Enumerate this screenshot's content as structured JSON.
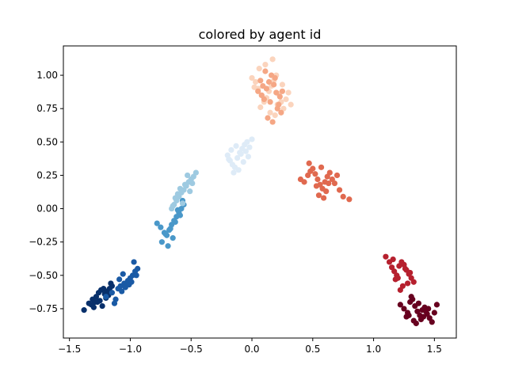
{
  "chart_data": {
    "type": "scatter",
    "title": "colored by agent id",
    "xlabel": "",
    "ylabel": "",
    "xlim": [
      -1.55,
      1.68
    ],
    "ylim": [
      -0.97,
      1.22
    ],
    "xticks": [
      -1.5,
      -1.0,
      -0.5,
      0.0,
      0.5,
      1.0,
      1.5
    ],
    "xtick_labels": [
      "−1.5",
      "−1.0",
      "−0.5",
      "0.0",
      "0.5",
      "1.0",
      "1.5"
    ],
    "yticks": [
      -0.75,
      -0.5,
      -0.25,
      0.0,
      0.25,
      0.5,
      0.75,
      1.0
    ],
    "ytick_labels": [
      "−0.75",
      "−0.50",
      "−0.25",
      "0.00",
      "0.25",
      "0.50",
      "0.75",
      "1.00"
    ],
    "grid": false,
    "legend": "none",
    "colormap": "RdBu_r",
    "series": [
      {
        "color": "#08306b",
        "x": [
          -1.38,
          -1.34,
          -1.31,
          -1.28,
          -1.26,
          -1.24,
          -1.22,
          -1.21,
          -1.19,
          -1.17,
          -1.15,
          -1.3,
          -1.27,
          -1.25,
          -1.2,
          -1.18,
          -1.32,
          -1.23,
          -1.16,
          -1.29
        ],
        "y": [
          -0.76,
          -0.71,
          -0.68,
          -0.66,
          -0.63,
          -0.61,
          -0.6,
          -0.64,
          -0.62,
          -0.6,
          -0.58,
          -0.74,
          -0.7,
          -0.69,
          -0.67,
          -0.65,
          -0.72,
          -0.73,
          -0.56,
          -0.7
        ]
      },
      {
        "color": "#1a5aa5",
        "x": [
          -1.2,
          -1.15,
          -1.1,
          -1.08,
          -1.05,
          -1.02,
          -1.0,
          -0.98,
          -0.96,
          -0.94,
          -1.12,
          -1.07,
          -1.04,
          -1.01,
          -0.99,
          -1.13,
          -1.06,
          -1.09,
          -0.95,
          -0.97
        ],
        "y": [
          -0.66,
          -0.63,
          -0.6,
          -0.58,
          -0.56,
          -0.54,
          -0.52,
          -0.5,
          -0.47,
          -0.45,
          -0.68,
          -0.62,
          -0.59,
          -0.57,
          -0.55,
          -0.71,
          -0.49,
          -0.53,
          -0.5,
          -0.4
        ]
      },
      {
        "color": "#4a98c9",
        "x": [
          -0.78,
          -0.75,
          -0.72,
          -0.7,
          -0.68,
          -0.66,
          -0.64,
          -0.62,
          -0.6,
          -0.58,
          -0.56,
          -0.74,
          -0.69,
          -0.65,
          -0.63,
          -0.61,
          -0.57,
          -0.71,
          -0.67,
          -0.59
        ],
        "y": [
          -0.11,
          -0.14,
          -0.18,
          -0.2,
          -0.16,
          -0.12,
          -0.09,
          -0.06,
          -0.03,
          0.0,
          0.03,
          -0.25,
          -0.28,
          -0.22,
          -0.1,
          -0.01,
          0.06,
          -0.19,
          -0.15,
          -0.05
        ]
      },
      {
        "color": "#9ecae1",
        "x": [
          -0.66,
          -0.64,
          -0.62,
          -0.6,
          -0.58,
          -0.56,
          -0.54,
          -0.52,
          -0.5,
          -0.48,
          -0.46,
          -0.63,
          -0.59,
          -0.55,
          -0.53,
          -0.61,
          -0.57,
          -0.51,
          -0.49,
          -0.65
        ],
        "y": [
          0.0,
          0.03,
          0.06,
          0.09,
          0.12,
          0.14,
          0.17,
          0.2,
          0.22,
          0.24,
          0.27,
          0.08,
          0.15,
          0.18,
          0.25,
          0.11,
          0.04,
          0.13,
          0.19,
          0.02
        ]
      },
      {
        "color": "#deebf7",
        "x": [
          -0.2,
          -0.18,
          -0.16,
          -0.14,
          -0.12,
          -0.1,
          -0.08,
          -0.06,
          -0.04,
          -0.02,
          0.0,
          -0.15,
          -0.11,
          -0.07,
          -0.13,
          -0.09,
          -0.05,
          -0.17,
          -0.03,
          -0.19
        ],
        "y": [
          0.4,
          0.36,
          0.33,
          0.31,
          0.38,
          0.42,
          0.45,
          0.48,
          0.5,
          0.46,
          0.52,
          0.27,
          0.29,
          0.35,
          0.47,
          0.41,
          0.43,
          0.44,
          0.39,
          0.37
        ]
      },
      {
        "color": "#fbd4bd",
        "x": [
          0.0,
          0.03,
          0.05,
          0.08,
          0.1,
          0.12,
          0.14,
          0.16,
          0.18,
          0.2,
          0.22,
          0.24,
          0.26,
          0.28,
          0.3,
          0.06,
          0.11,
          0.17,
          0.21,
          0.25,
          0.07,
          0.15,
          0.19,
          0.32,
          0.02
        ],
        "y": [
          0.98,
          0.95,
          0.9,
          0.85,
          0.8,
          0.83,
          0.88,
          0.92,
          0.96,
          1.0,
          0.86,
          0.8,
          0.75,
          0.82,
          0.87,
          1.05,
          1.08,
          1.12,
          0.78,
          0.93,
          0.76,
          0.72,
          0.7,
          0.78,
          0.91
        ]
      },
      {
        "color": "#f5a785",
        "x": [
          0.05,
          0.08,
          0.1,
          0.12,
          0.14,
          0.16,
          0.18,
          0.2,
          0.22,
          0.24,
          0.13,
          0.17,
          0.21,
          0.11,
          0.19,
          0.23,
          0.15,
          0.09,
          0.25,
          0.07
        ],
        "y": [
          0.88,
          0.85,
          0.82,
          0.9,
          0.95,
          1.0,
          0.93,
          0.87,
          0.78,
          0.72,
          0.68,
          0.65,
          0.75,
          1.03,
          0.98,
          0.84,
          0.8,
          0.92,
          0.88,
          0.96
        ]
      },
      {
        "color": "#e0694f",
        "x": [
          0.4,
          0.43,
          0.46,
          0.48,
          0.5,
          0.52,
          0.54,
          0.56,
          0.58,
          0.6,
          0.62,
          0.64,
          0.66,
          0.68,
          0.7,
          0.72,
          0.55,
          0.59,
          0.61,
          0.53,
          0.47,
          0.75,
          0.8,
          0.63,
          0.57
        ],
        "y": [
          0.22,
          0.2,
          0.25,
          0.28,
          0.3,
          0.26,
          0.22,
          0.18,
          0.15,
          0.2,
          0.24,
          0.27,
          0.22,
          0.19,
          0.25,
          0.14,
          0.1,
          0.08,
          0.13,
          0.17,
          0.34,
          0.09,
          0.07,
          0.19,
          0.31
        ]
      },
      {
        "color": "#b6202e",
        "x": [
          1.1,
          1.13,
          1.15,
          1.17,
          1.19,
          1.21,
          1.23,
          1.25,
          1.27,
          1.29,
          1.31,
          1.33,
          1.2,
          1.24,
          1.28,
          1.16,
          1.22,
          1.26,
          1.3,
          1.18
        ],
        "y": [
          -0.36,
          -0.4,
          -0.44,
          -0.47,
          -0.5,
          -0.43,
          -0.4,
          -0.42,
          -0.46,
          -0.49,
          -0.52,
          -0.55,
          -0.52,
          -0.58,
          -0.56,
          -0.38,
          -0.61,
          -0.45,
          -0.48,
          -0.53
        ]
      },
      {
        "color": "#67001f",
        "x": [
          1.22,
          1.25,
          1.28,
          1.3,
          1.32,
          1.34,
          1.36,
          1.38,
          1.4,
          1.42,
          1.44,
          1.46,
          1.48,
          1.5,
          1.52,
          1.29,
          1.33,
          1.37,
          1.41,
          1.45,
          1.31,
          1.35,
          1.39,
          1.43,
          1.27
        ],
        "y": [
          -0.72,
          -0.75,
          -0.78,
          -0.7,
          -0.68,
          -0.73,
          -0.77,
          -0.8,
          -0.76,
          -0.74,
          -0.79,
          -0.82,
          -0.85,
          -0.78,
          -0.72,
          -0.8,
          -0.84,
          -0.71,
          -0.81,
          -0.75,
          -0.66,
          -0.86,
          -0.83,
          -0.77,
          -0.81
        ]
      }
    ]
  }
}
